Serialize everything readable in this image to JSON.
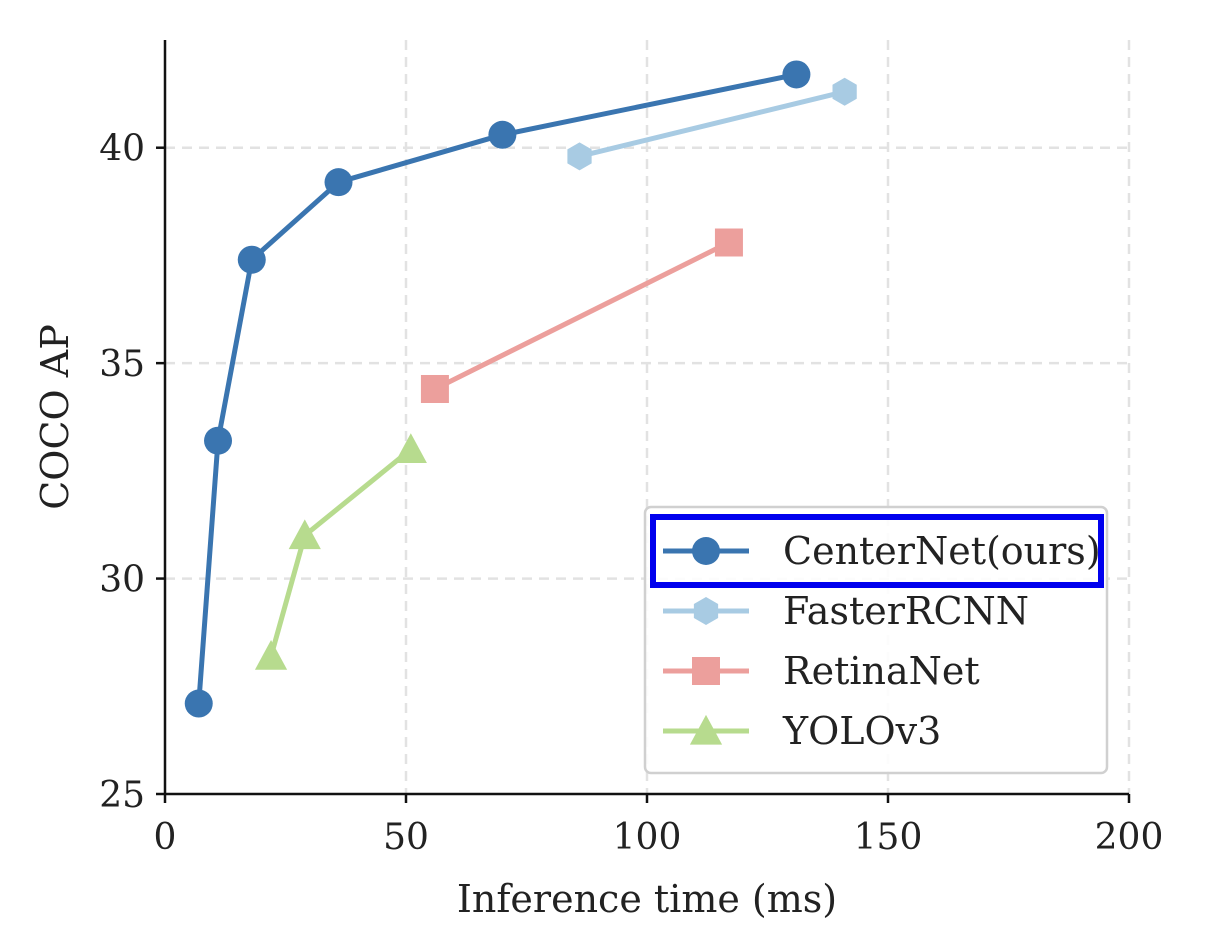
{
  "chart_data": {
    "type": "line",
    "title": "",
    "xlabel": "Inference time (ms)",
    "ylabel": "COCO AP",
    "xlim": [
      0,
      200
    ],
    "ylim": [
      25,
      42.5
    ],
    "xticks": [
      0,
      50,
      100,
      150,
      200
    ],
    "yticks": [
      25,
      30,
      35,
      40
    ],
    "xtick_labels": [
      "0",
      "50",
      "100",
      "150",
      "200"
    ],
    "ytick_labels": [
      "25",
      "30",
      "35",
      "40"
    ],
    "grid": true,
    "legend_position": "bottom-right",
    "highlighted_legend_entry": "CenterNet(ours)",
    "highlight_color": "#0000ee",
    "series": [
      {
        "name": "CenterNet(ours)",
        "color": "#3a75b0",
        "marker": "circle",
        "x": [
          7,
          11,
          18,
          36,
          70,
          131
        ],
        "y": [
          27.1,
          33.2,
          37.4,
          39.2,
          40.3,
          41.7
        ]
      },
      {
        "name": "FasterRCNN",
        "color": "#a8cbe3",
        "marker": "hexagon",
        "x": [
          86,
          141
        ],
        "y": [
          39.8,
          41.3
        ]
      },
      {
        "name": "RetinaNet",
        "color": "#ec9f9c",
        "marker": "square",
        "x": [
          56,
          117
        ],
        "y": [
          34.4,
          37.8
        ]
      },
      {
        "name": "YOLOv3",
        "color": "#b7db8e",
        "marker": "triangle",
        "x": [
          22,
          29,
          51
        ],
        "y": [
          28.2,
          31.0,
          33.0
        ]
      }
    ]
  }
}
